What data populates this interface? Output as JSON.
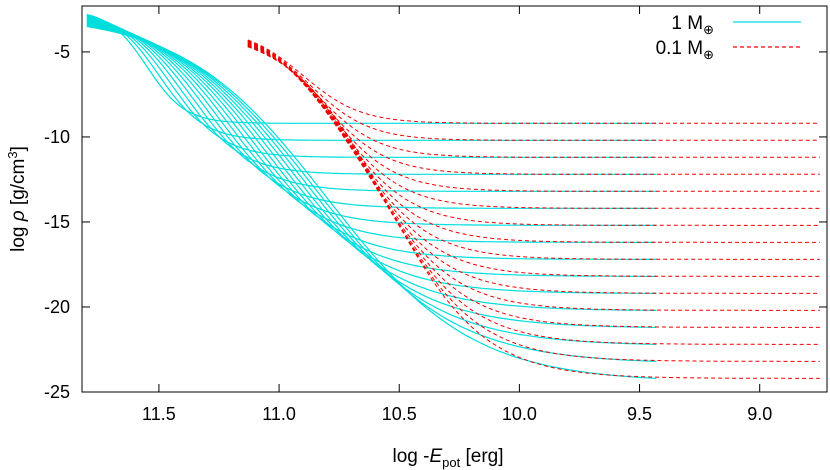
{
  "chart_data": {
    "type": "line",
    "xlabel": {
      "prefix": "log -",
      "var": "E",
      "sub": "pot",
      "suffix": " [erg]"
    },
    "ylabel": {
      "prefix": "log ",
      "var": "ρ",
      "suffix": " [g/cm",
      "sup": "3",
      "close": "]"
    },
    "xlim": [
      11.82,
      8.72
    ],
    "ylim": [
      -25,
      -2.3
    ],
    "x_reversed": true,
    "xticks": [
      11.5,
      11.0,
      10.5,
      10.0,
      9.5,
      9.0
    ],
    "xtick_labels": [
      "11.5",
      "11.0",
      "10.5",
      "10.0",
      "9.5",
      "9.0"
    ],
    "yticks": [
      -5,
      -10,
      -15,
      -20,
      -25
    ],
    "ytick_labels": [
      "-5",
      "-10",
      "-15",
      "-20",
      "-25"
    ],
    "grid": false,
    "legend_position": "top-right",
    "legend": [
      {
        "label": "1 M",
        "sub": "⊕",
        "color": "#00dddd",
        "style": "solid"
      },
      {
        "label": "0.1 M",
        "sub": "⊕",
        "color": "#ee0000",
        "style": "dashed"
      }
    ],
    "family_asymptotes": [
      -9.2,
      -10.2,
      -11.2,
      -12.2,
      -13.2,
      -14.2,
      -15.2,
      -16.2,
      -17.2,
      -18.2,
      -19.2,
      -20.2,
      -21.2,
      -22.2,
      -23.2,
      -24.2
    ],
    "series": [
      {
        "name": "1 M⊕",
        "color": "#00dddd",
        "style": "solid",
        "x_range": [
          11.8,
          9.43
        ],
        "start_y": {
          "first": -2.8,
          "last": -3.5
        },
        "family_count": 16
      },
      {
        "name": "0.1 M⊕",
        "color": "#ee0000",
        "style": "dashed",
        "x_range": [
          11.13,
          8.75
        ],
        "start_y": {
          "first": -4.3,
          "last": -4.7
        },
        "family_count": 16
      }
    ]
  }
}
